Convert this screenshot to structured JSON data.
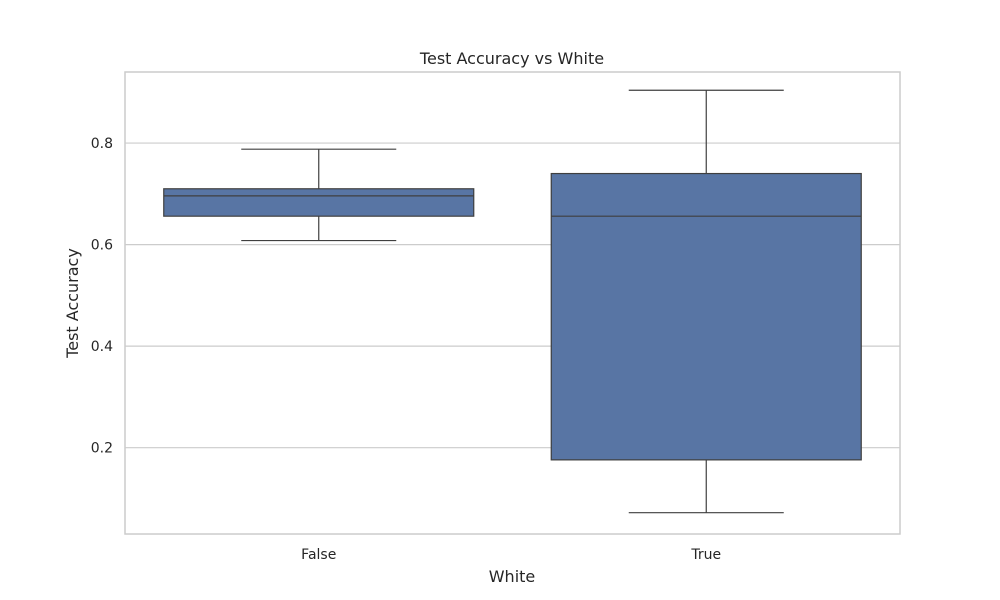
{
  "chart_data": {
    "type": "box",
    "title": "Test Accuracy vs White",
    "xlabel": "White",
    "ylabel": "Test Accuracy",
    "ylim": [
      0.03,
      0.94
    ],
    "yticks": [
      0.2,
      0.4,
      0.6,
      0.8
    ],
    "ytick_labels": [
      "0.2",
      "0.4",
      "0.6",
      "0.8"
    ],
    "grid": true,
    "categories": [
      "False",
      "True"
    ],
    "boxes": [
      {
        "category": "False",
        "whisker_low": 0.608,
        "q1": 0.656,
        "median": 0.696,
        "q3": 0.71,
        "whisker_high": 0.788
      },
      {
        "category": "True",
        "whisker_low": 0.072,
        "q1": 0.176,
        "median": 0.656,
        "q3": 0.74,
        "whisker_high": 0.904
      }
    ],
    "colors": {
      "box_fill": "#5875a4",
      "box_edge": "#3f3f3f",
      "grid": "#cccccc",
      "frame": "#cccccc",
      "text": "#262626"
    }
  }
}
